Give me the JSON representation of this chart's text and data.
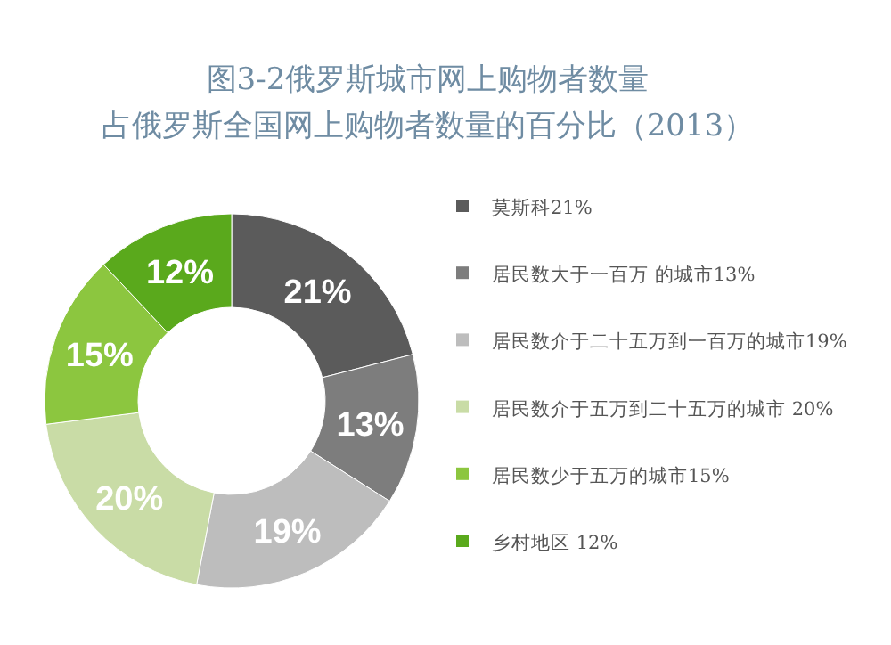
{
  "chart_data": {
    "type": "donut",
    "title": "图3-2俄罗斯城市网上购物者数量占俄罗斯全国网上购物者数量的百分比（2013）",
    "categories": [
      "莫斯科21%",
      "居民数大于一百万 的城市13%",
      "居民数介于二十五万到一百万的城市19%",
      "居民数介于五万到二十五万的城市 20%",
      "居民数少于五万的城市15%",
      "乡村地区 12%"
    ],
    "values": [
      21,
      13,
      19,
      20,
      15,
      12
    ],
    "colors": [
      "#5b5b5b",
      "#7d7d7d",
      "#bdbdbd",
      "#c9dca6",
      "#8cc63f",
      "#5aa91c"
    ],
    "value_labels": [
      "21%",
      "13%",
      "19%",
      "20%",
      "15%",
      "12%"
    ],
    "legend": "right"
  }
}
